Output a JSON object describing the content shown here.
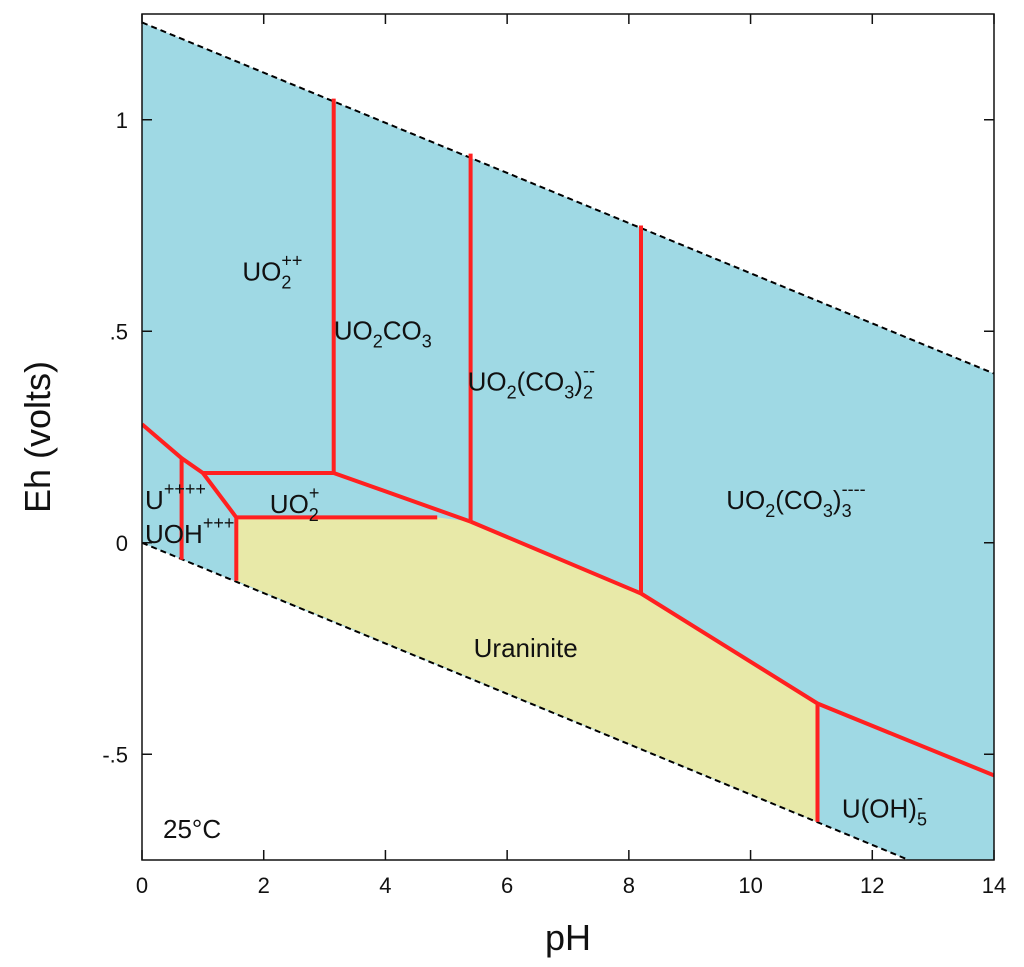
{
  "chart_data": {
    "type": "area",
    "title": "",
    "xlabel": "pH",
    "ylabel": "Eh (volts)",
    "xlim": [
      0,
      14
    ],
    "ylim": [
      -0.75,
      1.25
    ],
    "x_ticks": [
      0,
      2,
      4,
      6,
      8,
      10,
      12,
      14
    ],
    "x_tick_labels": [
      "0",
      "2",
      "4",
      "6",
      "8",
      "10",
      "12",
      "14"
    ],
    "y_ticks": [
      -0.5,
      0,
      0.5,
      1
    ],
    "y_tick_labels": [
      "-.5",
      "0",
      ".5",
      "1"
    ],
    "annotation": "25°C",
    "colors": {
      "aqueous": "#9fd9e4",
      "mineral": "#e8e9a8",
      "boundary": "#ff2020",
      "water_limit": "#000000"
    },
    "water_limits": {
      "upper": [
        [
          0,
          1.23
        ],
        [
          14,
          0.4
        ]
      ],
      "lower": [
        [
          0,
          0.0
        ],
        [
          12.6,
          -0.75
        ]
      ]
    },
    "regions": [
      {
        "id": "uo2pp",
        "base": "UO",
        "sub": "2",
        "sup": "++",
        "tail": "",
        "tail_sub": "",
        "tail_sup": "",
        "kind": "aqueous",
        "label_pos": [
          1.65,
          0.62
        ]
      },
      {
        "id": "uo2co3",
        "base": "UO",
        "sub": "2",
        "sup": "",
        "tail": "CO",
        "tail_sub": "3",
        "tail_sup": "",
        "kind": "aqueous",
        "label_pos": [
          3.15,
          0.48
        ]
      },
      {
        "id": "uo2co32",
        "base": "UO",
        "sub": "2",
        "sup": "",
        "tail": "(CO",
        "tail_sub": "3",
        "tail_close": ")",
        "tail_sub2": "2",
        "tail_sup": "--",
        "kind": "aqueous",
        "label_pos": [
          5.35,
          0.36
        ]
      },
      {
        "id": "uo2co33",
        "base": "UO",
        "sub": "2",
        "sup": "",
        "tail": "(CO",
        "tail_sub": "3",
        "tail_close": ")",
        "tail_sub2": "3",
        "tail_sup": "----",
        "kind": "aqueous",
        "label_pos": [
          9.6,
          0.08
        ]
      },
      {
        "id": "upppp",
        "base": "U",
        "sub": "",
        "sup": "++++",
        "tail": "",
        "tail_sub": "",
        "tail_sup": "",
        "kind": "aqueous",
        "label_pos": [
          0.05,
          0.08
        ]
      },
      {
        "id": "uohppp",
        "base": "UOH",
        "sub": "",
        "sup": "+++",
        "tail": "",
        "tail_sub": "",
        "tail_sup": "",
        "kind": "aqueous",
        "label_pos": [
          0.05,
          0.0
        ]
      },
      {
        "id": "uo2p",
        "base": "UO",
        "sub": "2",
        "sup": "+",
        "tail": "",
        "tail_sub": "",
        "tail_sup": "",
        "kind": "aqueous",
        "label_pos": [
          2.1,
          0.07
        ]
      },
      {
        "id": "uraninite",
        "base": "Uraninite",
        "sub": "",
        "sup": "",
        "tail": "",
        "tail_sub": "",
        "tail_sup": "",
        "kind": "mineral",
        "label_pos": [
          5.45,
          -0.27
        ]
      },
      {
        "id": "uoh5",
        "base": "U(OH)",
        "sub": "5",
        "sup": "-",
        "tail": "",
        "tail_sub": "",
        "tail_sup": "",
        "kind": "aqueous",
        "label_pos": [
          11.5,
          -0.65
        ]
      }
    ],
    "uraninite_polygon": [
      [
        1.55,
        0.06
      ],
      [
        4.85,
        0.06
      ],
      [
        5.4,
        0.05
      ],
      [
        8.2,
        -0.12
      ],
      [
        11.1,
        -0.38
      ],
      [
        11.1,
        -0.66
      ],
      [
        1.55,
        -0.09
      ]
    ],
    "boundaries": [
      [
        [
          0,
          0.28
        ],
        [
          0.65,
          0.2
        ],
        [
          0.65,
          -0.04
        ]
      ],
      [
        [
          0.65,
          0.2
        ],
        [
          1.0,
          0.165
        ],
        [
          3.15,
          0.165
        ]
      ],
      [
        [
          1.0,
          0.165
        ],
        [
          1.55,
          0.06
        ],
        [
          1.55,
          -0.09
        ]
      ],
      [
        [
          1.55,
          0.06
        ],
        [
          4.85,
          0.06
        ]
      ],
      [
        [
          3.15,
          1.05
        ],
        [
          3.15,
          0.165
        ],
        [
          5.4,
          0.05
        ]
      ],
      [
        [
          5.4,
          0.92
        ],
        [
          5.4,
          0.05
        ]
      ],
      [
        [
          8.2,
          0.75
        ],
        [
          8.2,
          -0.12
        ]
      ],
      [
        [
          5.4,
          0.05
        ],
        [
          8.2,
          -0.12
        ],
        [
          11.1,
          -0.38
        ],
        [
          14,
          -0.55
        ]
      ],
      [
        [
          11.1,
          -0.38
        ],
        [
          11.1,
          -0.66
        ]
      ]
    ]
  }
}
